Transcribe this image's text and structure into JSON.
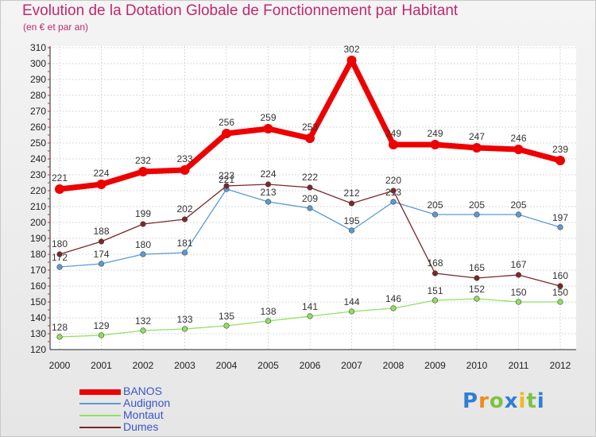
{
  "chart_data": {
    "type": "line",
    "title": "Evolution de la Dotation Globale de Fonctionnement par Habitant",
    "subtitle": "(en € et par an)",
    "x": [
      "2000",
      "2001",
      "2002",
      "2003",
      "2004",
      "2005",
      "2006",
      "2007",
      "2008",
      "2009",
      "2010",
      "2011",
      "2012"
    ],
    "ylim": [
      120,
      310
    ],
    "yticks": [
      120,
      130,
      140,
      150,
      160,
      170,
      180,
      190,
      200,
      210,
      220,
      230,
      240,
      250,
      260,
      270,
      280,
      290,
      300,
      310
    ],
    "grid": true,
    "legend_position": "bottom-left",
    "series": [
      {
        "name": "BANOS",
        "color": "#ee0000",
        "values": [
          221,
          224,
          232,
          233,
          256,
          259,
          253,
          302,
          249,
          249,
          247,
          246,
          239
        ]
      },
      {
        "name": "Audignon",
        "color": "#5b9bd5",
        "values": [
          172,
          174,
          180,
          181,
          221,
          213,
          209,
          195,
          213,
          205,
          205,
          205,
          197
        ]
      },
      {
        "name": "Montaut",
        "color": "#90e060",
        "values": [
          128,
          129,
          132,
          133,
          135,
          138,
          141,
          144,
          146,
          151,
          152,
          150,
          150
        ]
      },
      {
        "name": "Dumes",
        "color": "#7a2828",
        "values": [
          180,
          188,
          199,
          202,
          223,
          224,
          222,
          212,
          220,
          168,
          165,
          167,
          160
        ]
      }
    ]
  },
  "logo": {
    "letters": [
      "P",
      "r",
      "o",
      "x",
      "i",
      "t",
      "i"
    ],
    "colors": [
      "#2e7fd6",
      "#f08a1c",
      "#7cc242",
      "#2e7fd6",
      "#f0b81c",
      "#7cc242",
      "#2e7fd6"
    ]
  }
}
